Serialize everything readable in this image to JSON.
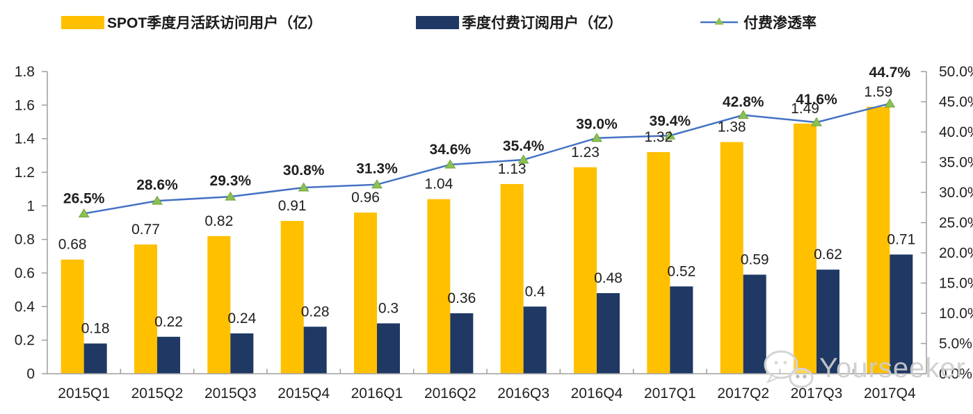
{
  "chart_data": {
    "type": "bar+line",
    "categories": [
      "2015Q1",
      "2015Q2",
      "2015Q3",
      "2015Q4",
      "2016Q1",
      "2016Q2",
      "2016Q3",
      "2016Q4",
      "2017Q1",
      "2017Q2",
      "2017Q3",
      "2017Q4"
    ],
    "series": [
      {
        "name": "SPOT季度月活跃访问用户（亿）",
        "type": "bar",
        "axis": "left",
        "color": "#FFC000",
        "values": [
          0.68,
          0.77,
          0.82,
          0.91,
          0.96,
          1.04,
          1.13,
          1.23,
          1.32,
          1.38,
          1.49,
          1.59
        ],
        "labels": [
          "0.68",
          "0.77",
          "0.82",
          "0.91",
          "0.96",
          "1.04",
          "1.13",
          "1.23",
          "1.32",
          "1.38",
          "1.49",
          "1.59"
        ]
      },
      {
        "name": "季度付费订阅用户（亿）",
        "type": "bar",
        "axis": "left",
        "color": "#1F3864",
        "values": [
          0.18,
          0.22,
          0.24,
          0.28,
          0.3,
          0.36,
          0.4,
          0.48,
          0.52,
          0.59,
          0.62,
          0.71
        ],
        "labels": [
          "0.18",
          "0.22",
          "0.24",
          "0.28",
          "0.3",
          "0.36",
          "0.4",
          "0.48",
          "0.52",
          "0.59",
          "0.62",
          "0.71"
        ]
      },
      {
        "name": "付费渗透率",
        "type": "line",
        "axis": "right",
        "line_color": "#4472C4",
        "marker": "triangle",
        "marker_color": "#8CC152",
        "values_percent": [
          26.5,
          28.6,
          29.3,
          30.8,
          31.3,
          34.6,
          35.4,
          39.0,
          39.4,
          42.8,
          41.6,
          44.7
        ],
        "labels": [
          "26.5%",
          "28.6%",
          "29.3%",
          "30.8%",
          "31.3%",
          "34.6%",
          "35.4%",
          "39.0%",
          "39.4%",
          "42.8%",
          "41.6%",
          "44.7%"
        ]
      }
    ],
    "left_axis": {
      "min": 0,
      "max": 1.8,
      "step": 0.2,
      "tick_labels": [
        "0",
        "0.2",
        "0.4",
        "0.6",
        "0.8",
        "1",
        "1.2",
        "1.4",
        "1.6",
        "1.8"
      ]
    },
    "right_axis": {
      "min": 0,
      "max": 50,
      "step": 5,
      "unit": "%",
      "tick_labels": [
        "0.0%",
        "5.0%",
        "10.0%",
        "15.0%",
        "20.0%",
        "25.0%",
        "30.0%",
        "35.0%",
        "40.0%",
        "45.0%",
        "50.0%"
      ]
    },
    "grid": false,
    "legend_position": "top"
  },
  "watermark": {
    "text": "Yourseeker",
    "icon": "wechat-chat-bubbles"
  },
  "colors": {
    "axis": "#9e9e9e",
    "text": "#1f1f1f",
    "watermark": "#cdcdcd"
  }
}
